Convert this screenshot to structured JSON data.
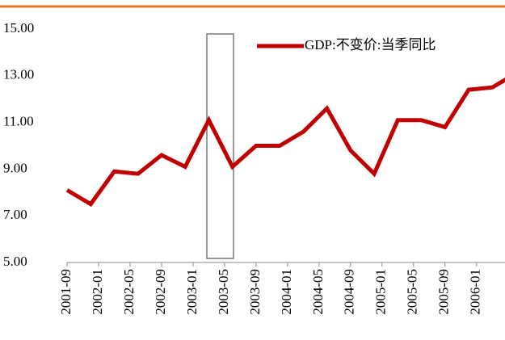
{
  "chart_data": {
    "type": "line",
    "x": [
      "2001-09",
      "2001-12",
      "2002-03",
      "2002-06",
      "2002-09",
      "2002-12",
      "2003-03",
      "2003-06",
      "2003-09",
      "2003-12",
      "2004-03",
      "2004-06",
      "2004-09",
      "2004-12",
      "2005-03",
      "2005-06",
      "2005-09",
      "2005-12",
      "2006-03",
      "2006-06"
    ],
    "series": [
      {
        "name": "GDP:不变价:当季同比",
        "color": "#c00000",
        "values": [
          8.1,
          7.5,
          8.9,
          8.8,
          9.6,
          9.1,
          11.1,
          9.1,
          10.0,
          10.0,
          10.6,
          11.6,
          9.8,
          8.8,
          11.1,
          11.1,
          10.8,
          12.4,
          12.5,
          13.1
        ]
      }
    ],
    "xlim": [
      "2001-09",
      "2006-04"
    ],
    "xticks": [
      "2001-09",
      "2002-01",
      "2002-05",
      "2002-09",
      "2003-01",
      "2003-05",
      "2003-09",
      "2004-01",
      "2004-05",
      "2004-09",
      "2005-01",
      "2005-05",
      "2005-09",
      "2006-01"
    ],
    "ylim": [
      5,
      15
    ],
    "yticks": [
      {
        "value": 5,
        "label": "5.00"
      },
      {
        "value": 7,
        "label": "7.00"
      },
      {
        "value": 9,
        "label": "9.00"
      },
      {
        "value": 11,
        "label": "11.00"
      },
      {
        "value": 13,
        "label": "13.00"
      },
      {
        "value": 15,
        "label": "15.00"
      }
    ],
    "legend": "upper right"
  }
}
